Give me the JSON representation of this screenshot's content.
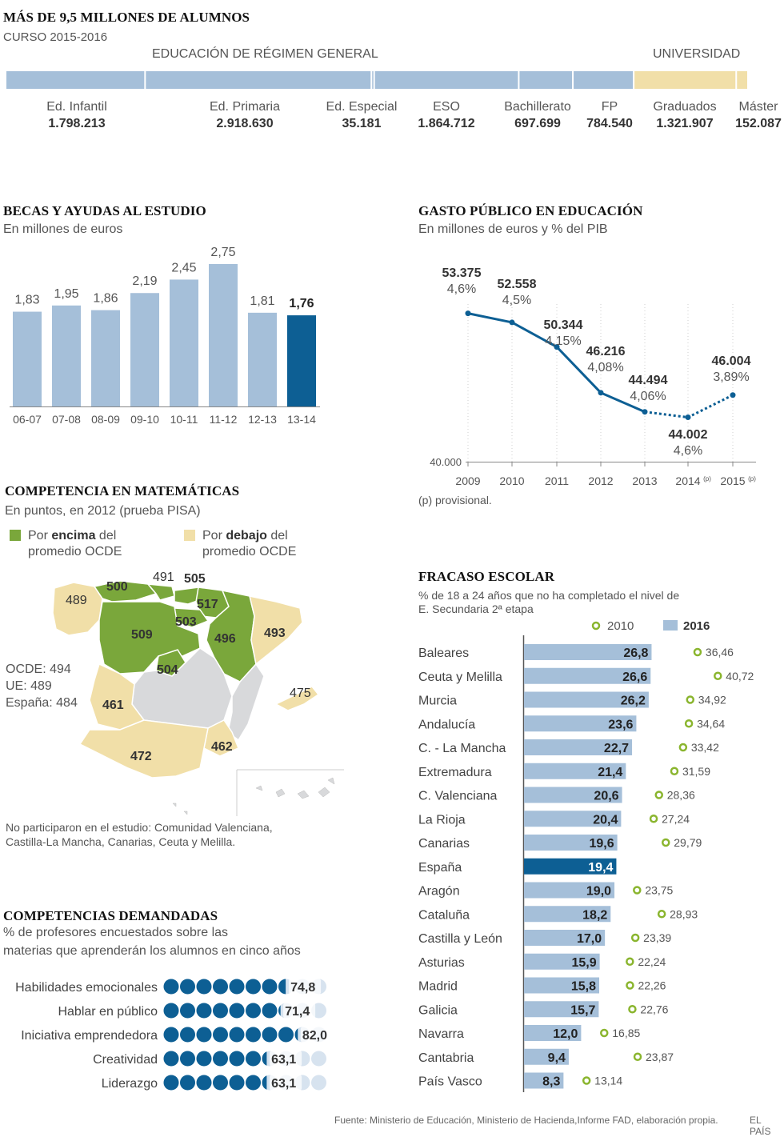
{
  "alumnos": {
    "title": "MÁS DE 9,5 MILLONES DE ALUMNOS",
    "subtitle": "CURSO 2015-2016",
    "group_general": "EDUCACIÓN DE RÉGIMEN GENERAL",
    "group_universidad": "UNIVERSIDAD",
    "colors": {
      "general": "#a5bfd9",
      "universidad": "#f1dfa8"
    },
    "segments": [
      {
        "name": "Ed. Infantil",
        "value": "1.798.213",
        "n": 1798213,
        "group": "general"
      },
      {
        "name": "Ed. Primaria",
        "value": "2.918.630",
        "n": 2918630,
        "group": "general"
      },
      {
        "name": "Ed. Especial",
        "value": "35.181",
        "n": 35181,
        "group": "general"
      },
      {
        "name": "ESO",
        "value": "1.864.712",
        "n": 1864712,
        "group": "general"
      },
      {
        "name": "Bachillerato",
        "value": "697.699",
        "n": 697699,
        "group": "general"
      },
      {
        "name": "FP",
        "value": "784.540",
        "n": 784540,
        "group": "general"
      },
      {
        "name": "Graduados",
        "value": "1.321.907",
        "n": 1321907,
        "group": "universidad"
      },
      {
        "name": "Máster",
        "value": "152.087",
        "n": 152087,
        "group": "universidad"
      }
    ]
  },
  "becas": {
    "title": "BECAS Y AYUDAS AL ESTUDIO",
    "subtitle": "En millones de euros",
    "bar_color": "#a5bfd9",
    "highlight_color": "#0d5f94"
  },
  "gasto": {
    "title": "GASTO PÚBLICO EN EDUCACIÓN",
    "subtitle": "En millones de euros y % del PIB",
    "footnote": "(p) provisional.",
    "baseline_label": "40.000",
    "provisional_mark": "(p)",
    "line_color": "#0d5f94"
  },
  "matematicas": {
    "title": "COMPETENCIA EN MATEMÁTICAS",
    "subtitle": "En puntos, en 2012 (prueba PISA)",
    "legend_above_pre": "Por ",
    "legend_above_bold": "encima",
    "legend_above_post": " del",
    "legend_above_line2": "promedio OCDE",
    "legend_below_pre": "Por ",
    "legend_below_bold": "debajo",
    "legend_below_post": " del",
    "legend_below_line2": "promedio OCDE",
    "above_color": "#7aa73b",
    "below_color": "#f1dfa8",
    "no_data_color": "#d8d9db",
    "ocde": "OCDE: 494",
    "ue": "UE: 489",
    "espana": "España: 484",
    "note_line1": "No participaron en el estudio: Comunidad Valenciana,",
    "note_line2": "Castilla-La Mancha, Canarias, Ceuta y Melilla.",
    "scores": {
      "galicia": "489",
      "asturias": "500",
      "cantabria": "491",
      "pais_vasco": "505",
      "navarra": "517",
      "la_rioja": "503",
      "castilla_leon": "509",
      "aragon": "496",
      "cataluna": "493",
      "baleares": "475",
      "madrid": "504",
      "extremadura": "461",
      "andalucia": "472",
      "murcia": "462"
    }
  },
  "competencias": {
    "title": "COMPETENCIAS DEMANDADAS",
    "subtitle_line1": "% de profesores encuestados sobre las",
    "subtitle_line2": "materias que aprenderán los alumnos en cinco años",
    "dot_color": "#0d5f94",
    "empty_color": "#d7e3ef"
  },
  "fracaso": {
    "title": "FRACASO ESCOLAR",
    "subtitle_line1": "% de 18 a 24 años que no ha completado el nivel de",
    "subtitle_line2": "E. Secundaria 2ª etapa",
    "legend_2010": "2010",
    "legend_2016": "2016",
    "bar_color": "#a5bfd9",
    "highlight_color": "#0d5f94",
    "marker_color": "#8ab52e"
  },
  "footer": {
    "source": "Fuente: Ministerio de Educación, Ministerio de Hacienda,Informe FAD, elaboración propia.",
    "brand": "EL PAÍS"
  },
  "chart_data": [
    {
      "id": "alumnos",
      "type": "bar",
      "orientation": "stacked-horizontal",
      "title": "MÁS DE 9,5 MILLONES DE ALUMNOS",
      "categories": [
        "Ed. Infantil",
        "Ed. Primaria",
        "Ed. Especial",
        "ESO",
        "Bachillerato",
        "FP",
        "Graduados",
        "Máster"
      ],
      "values": [
        1798213,
        2918630,
        35181,
        1864712,
        697699,
        784540,
        1321907,
        152087
      ]
    },
    {
      "id": "becas",
      "type": "bar",
      "title": "BECAS Y AYUDAS AL ESTUDIO",
      "ylabel": "En millones de euros",
      "categories": [
        "06-07",
        "07-08",
        "08-09",
        "09-10",
        "10-11",
        "11-12",
        "12-13",
        "13-14"
      ],
      "values": [
        1.83,
        1.95,
        1.86,
        2.19,
        2.45,
        2.75,
        1.81,
        1.76
      ],
      "labels": [
        "1,83",
        "1,95",
        "1,86",
        "2,19",
        "2,45",
        "2,75",
        "1,81",
        "1,76"
      ],
      "highlight_index": 7,
      "ylim": [
        0,
        2.75
      ]
    },
    {
      "id": "gasto",
      "type": "line",
      "title": "GASTO PÚBLICO EN EDUCACIÓN",
      "x": [
        "2009",
        "2010",
        "2011",
        "2012",
        "2013",
        "2014",
        "2015"
      ],
      "values": [
        53375,
        52558,
        50344,
        46216,
        44494,
        44002,
        46004
      ],
      "value_labels": [
        "53.375",
        "52.558",
        "50.344",
        "46.216",
        "44.494",
        "44.002",
        "46.004"
      ],
      "pib_labels": [
        "4,6%",
        "4,5%",
        "4,15%",
        "4,08%",
        "4,06%",
        "4,6%",
        "3,89%"
      ],
      "provisional": [
        false,
        false,
        false,
        false,
        false,
        true,
        true
      ],
      "ylim": [
        40000,
        54500
      ]
    },
    {
      "id": "competencias",
      "type": "bar",
      "title": "COMPETENCIAS DEMANDADAS",
      "categories": [
        "Habilidades emocionales",
        "Hablar en público",
        "Iniciativa emprendedora",
        "Creatividad",
        "Liderazgo"
      ],
      "values": [
        74.8,
        71.4,
        82.0,
        63.1,
        63.1
      ],
      "labels": [
        "74,8",
        "71,4",
        "82,0",
        "63,1",
        "63,1"
      ],
      "dots_total": 10
    },
    {
      "id": "fracaso",
      "type": "bar",
      "orientation": "horizontal",
      "title": "FRACASO ESCOLAR",
      "series": [
        {
          "name": "2016",
          "values": [
            26.8,
            26.6,
            26.2,
            23.6,
            22.7,
            21.4,
            20.6,
            20.4,
            19.6,
            19.4,
            19.0,
            18.2,
            17.0,
            15.9,
            15.8,
            15.7,
            12.0,
            9.4,
            8.3
          ],
          "labels": [
            "26,8",
            "26,6",
            "26,2",
            "23,6",
            "22,7",
            "21,4",
            "20,6",
            "20,4",
            "19,6",
            "19,4",
            "19,0",
            "18,2",
            "17,0",
            "15,9",
            "15,8",
            "15,7",
            "12,0",
            "9,4",
            "8,3"
          ]
        },
        {
          "name": "2010",
          "values": [
            36.46,
            40.72,
            34.92,
            34.64,
            33.42,
            31.59,
            28.36,
            27.24,
            29.79,
            null,
            23.75,
            28.93,
            23.39,
            22.24,
            22.26,
            22.76,
            16.85,
            23.87,
            13.14
          ],
          "labels": [
            "36,46",
            "40,72",
            "34,92",
            "34,64",
            "33,42",
            "31,59",
            "28,36",
            "27,24",
            "29,79",
            "",
            "23,75",
            "28,93",
            "23,39",
            "22,24",
            "22,26",
            "22,76",
            "16,85",
            "23,87",
            "13,14"
          ]
        }
      ],
      "categories": [
        "Baleares",
        "Ceuta y Melilla",
        "Murcia",
        "Andalucía",
        "C.  - La Mancha",
        "Extremadura",
        "C. Valenciana",
        "La Rioja",
        "Canarias",
        "España",
        "Aragón",
        "Cataluña",
        "Castilla y León",
        "Asturias",
        "Madrid",
        "Galicia",
        "Navarra",
        "Cantabria",
        "País Vasco"
      ],
      "highlight_index": 9
    }
  ]
}
